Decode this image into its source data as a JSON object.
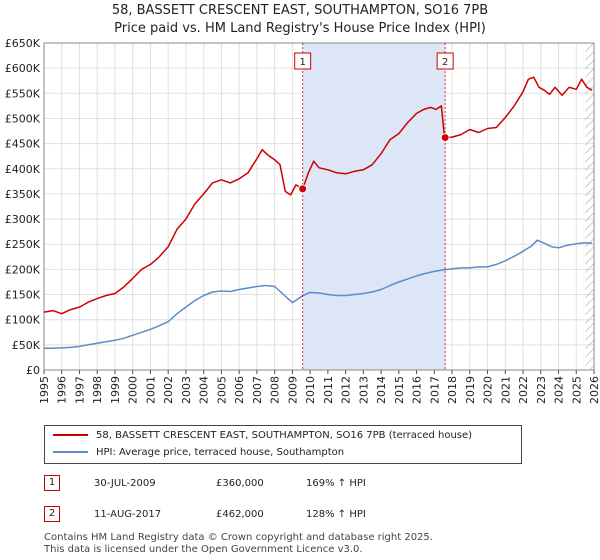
{
  "title_line1": "58, BASSETT CRESCENT EAST, SOUTHAMPTON, SO16 7PB",
  "title_line2": "Price paid vs. HM Land Registry's House Price Index (HPI)",
  "colors": {
    "price_line": "#cc0000",
    "hpi_line": "#5b8cc8",
    "shade": "#dde6f7",
    "grid": "#e0e0e0"
  },
  "chart_data": {
    "type": "line",
    "xlim": [
      1995,
      2026
    ],
    "ylim": [
      0,
      650000
    ],
    "x_ticks": [
      "1995",
      "1996",
      "1997",
      "1998",
      "1999",
      "2000",
      "2001",
      "2002",
      "2003",
      "2004",
      "2005",
      "2006",
      "2007",
      "2008",
      "2009",
      "2010",
      "2011",
      "2012",
      "2013",
      "2014",
      "2015",
      "2016",
      "2017",
      "2018",
      "2019",
      "2020",
      "2021",
      "2022",
      "2023",
      "2024",
      "2025",
      "2026"
    ],
    "y_ticks": [
      {
        "value": 0,
        "label": "£0"
      },
      {
        "value": 50000,
        "label": "£50K"
      },
      {
        "value": 100000,
        "label": "£100K"
      },
      {
        "value": 150000,
        "label": "£150K"
      },
      {
        "value": 200000,
        "label": "£200K"
      },
      {
        "value": 250000,
        "label": "£250K"
      },
      {
        "value": 300000,
        "label": "£300K"
      },
      {
        "value": 350000,
        "label": "£350K"
      },
      {
        "value": 400000,
        "label": "£400K"
      },
      {
        "value": 450000,
        "label": "£450K"
      },
      {
        "value": 500000,
        "label": "£500K"
      },
      {
        "value": 550000,
        "label": "£550K"
      },
      {
        "value": 600000,
        "label": "£600K"
      },
      {
        "value": 650000,
        "label": "£650K"
      }
    ],
    "shaded_range": [
      2009.58,
      2017.61
    ],
    "future_hatch_from": 2025.5,
    "series": [
      {
        "name": "58, BASSETT CRESCENT EAST, SOUTHAMPTON, SO16 7PB (terraced house)",
        "x": [
          1995,
          1995.5,
          1996,
          1996.5,
          1997,
          1997.5,
          1998,
          1998.5,
          1999,
          1999.5,
          2000,
          2000.5,
          2001,
          2001.5,
          2002,
          2002.5,
          2003,
          2003.5,
          2004,
          2004.5,
          2005,
          2005.5,
          2006,
          2006.5,
          2007,
          2007.3,
          2007.6,
          2008,
          2008.3,
          2008.6,
          2008.9,
          2009.2,
          2009.58,
          2009.9,
          2010.2,
          2010.5,
          2011,
          2011.5,
          2012,
          2012.5,
          2013,
          2013.5,
          2014,
          2014.5,
          2015,
          2015.5,
          2016,
          2016.4,
          2016.8,
          2017.1,
          2017.4,
          2017.55,
          2017.61,
          2018,
          2018.5,
          2019,
          2019.5,
          2020,
          2020.5,
          2021,
          2021.5,
          2022,
          2022.3,
          2022.6,
          2022.9,
          2023.2,
          2023.5,
          2023.8,
          2024.2,
          2024.6,
          2025,
          2025.3,
          2025.6,
          2025.9
        ],
        "y": [
          115000,
          118000,
          112000,
          120000,
          125000,
          135000,
          142000,
          148000,
          152000,
          165000,
          182000,
          200000,
          210000,
          225000,
          245000,
          280000,
          300000,
          330000,
          350000,
          372000,
          378000,
          372000,
          380000,
          392000,
          420000,
          438000,
          428000,
          418000,
          408000,
          355000,
          348000,
          368000,
          360000,
          392000,
          415000,
          402000,
          398000,
          392000,
          390000,
          395000,
          398000,
          408000,
          430000,
          458000,
          470000,
          492000,
          510000,
          518000,
          522000,
          518000,
          525000,
          470000,
          462000,
          463000,
          468000,
          478000,
          472000,
          480000,
          482000,
          502000,
          525000,
          553000,
          578000,
          582000,
          562000,
          556000,
          548000,
          562000,
          546000,
          562000,
          558000,
          578000,
          562000,
          556000
        ]
      },
      {
        "name": "HPI: Average price, terraced house, Southampton",
        "x": [
          1995,
          1995.5,
          1996,
          1996.5,
          1997,
          1997.5,
          1998,
          1998.5,
          1999,
          1999.5,
          2000,
          2000.5,
          2001,
          2001.5,
          2002,
          2002.5,
          2003,
          2003.5,
          2004,
          2004.5,
          2005,
          2005.5,
          2006,
          2006.5,
          2007,
          2007.5,
          2008,
          2008.5,
          2009,
          2009.3,
          2009.6,
          2010,
          2010.5,
          2011,
          2011.5,
          2012,
          2012.5,
          2013,
          2013.5,
          2014,
          2014.5,
          2015,
          2015.5,
          2016,
          2016.5,
          2017,
          2017.5,
          2018,
          2018.5,
          2019,
          2019.5,
          2020,
          2020.5,
          2021,
          2021.5,
          2022,
          2022.5,
          2022.8,
          2023.2,
          2023.6,
          2024,
          2024.5,
          2025,
          2025.5,
          2025.9
        ],
        "y": [
          43000,
          43500,
          44000,
          45000,
          47000,
          50000,
          53000,
          56000,
          59000,
          63000,
          69000,
          75000,
          81000,
          88000,
          96000,
          112000,
          125000,
          138000,
          148000,
          155000,
          157000,
          156000,
          160000,
          163000,
          166000,
          168000,
          166000,
          150000,
          134000,
          141000,
          148000,
          154000,
          153000,
          150000,
          148000,
          148000,
          150000,
          152000,
          155000,
          160000,
          168000,
          175000,
          181000,
          187000,
          192000,
          196000,
          199000,
          201000,
          203000,
          203000,
          205000,
          205000,
          210000,
          217000,
          226000,
          236000,
          247000,
          258000,
          252000,
          245000,
          243000,
          248000,
          251000,
          253000,
          252000
        ]
      }
    ],
    "annotations": [
      {
        "label": "1",
        "x": 2009.58,
        "y": 360000
      },
      {
        "label": "2",
        "x": 2017.61,
        "y": 462000
      }
    ]
  },
  "legend": {
    "price_label": "58, BASSETT CRESCENT EAST, SOUTHAMPTON, SO16 7PB (terraced house)",
    "hpi_label": "HPI: Average price, terraced house, Southampton"
  },
  "sales": [
    {
      "num": "1",
      "date": "30-JUL-2009",
      "price": "£360,000",
      "hpi": "169% ↑ HPI"
    },
    {
      "num": "2",
      "date": "11-AUG-2017",
      "price": "£462,000",
      "hpi": "128% ↑ HPI"
    }
  ],
  "footer_line1": "Contains HM Land Registry data © Crown copyright and database right 2025.",
  "footer_line2": "This data is licensed under the Open Government Licence v3.0."
}
